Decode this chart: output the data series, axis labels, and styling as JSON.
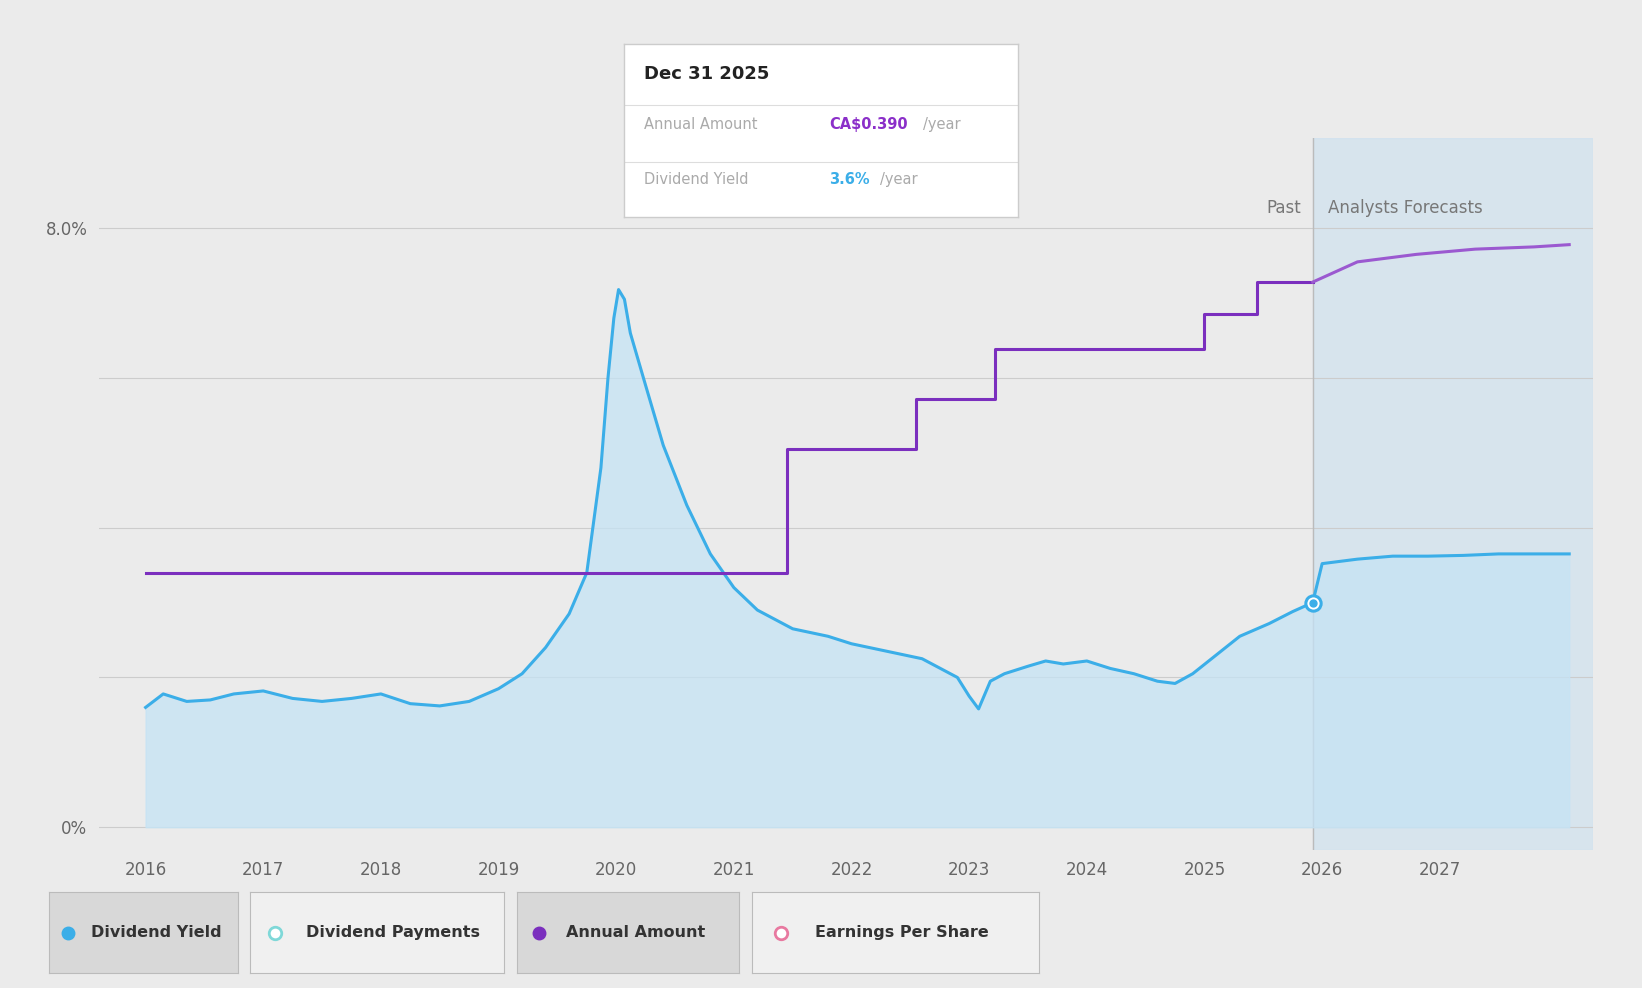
{
  "bg_color": "#ebebeb",
  "plot_bg_color": "#ebebeb",
  "x_min": 2015.6,
  "x_max": 2028.3,
  "y_min": -0.3,
  "y_max": 9.2,
  "forecast_start": 2025.92,
  "dividend_yield_color": "#3baee8",
  "dividend_yield_fill_color": "#c5e3f5",
  "annual_amount_color": "#7b2fbe",
  "annual_amount_forecast_color": "#9b59d0",
  "dot_color": "#3baee8",
  "dividend_yield_data": [
    [
      2016.0,
      1.6
    ],
    [
      2016.15,
      1.78
    ],
    [
      2016.35,
      1.68
    ],
    [
      2016.55,
      1.7
    ],
    [
      2016.75,
      1.78
    ],
    [
      2017.0,
      1.82
    ],
    [
      2017.25,
      1.72
    ],
    [
      2017.5,
      1.68
    ],
    [
      2017.75,
      1.72
    ],
    [
      2018.0,
      1.78
    ],
    [
      2018.25,
      1.65
    ],
    [
      2018.5,
      1.62
    ],
    [
      2018.75,
      1.68
    ],
    [
      2019.0,
      1.85
    ],
    [
      2019.2,
      2.05
    ],
    [
      2019.4,
      2.4
    ],
    [
      2019.6,
      2.85
    ],
    [
      2019.75,
      3.4
    ],
    [
      2019.87,
      4.8
    ],
    [
      2019.93,
      6.0
    ],
    [
      2019.98,
      6.8
    ],
    [
      2020.02,
      7.18
    ],
    [
      2020.07,
      7.05
    ],
    [
      2020.12,
      6.6
    ],
    [
      2020.25,
      5.9
    ],
    [
      2020.4,
      5.1
    ],
    [
      2020.6,
      4.3
    ],
    [
      2020.8,
      3.65
    ],
    [
      2021.0,
      3.2
    ],
    [
      2021.2,
      2.9
    ],
    [
      2021.5,
      2.65
    ],
    [
      2021.8,
      2.55
    ],
    [
      2022.0,
      2.45
    ],
    [
      2022.3,
      2.35
    ],
    [
      2022.6,
      2.25
    ],
    [
      2022.9,
      2.0
    ],
    [
      2023.0,
      1.75
    ],
    [
      2023.08,
      1.58
    ],
    [
      2023.18,
      1.95
    ],
    [
      2023.3,
      2.05
    ],
    [
      2023.5,
      2.15
    ],
    [
      2023.65,
      2.22
    ],
    [
      2023.8,
      2.18
    ],
    [
      2024.0,
      2.22
    ],
    [
      2024.2,
      2.12
    ],
    [
      2024.4,
      2.05
    ],
    [
      2024.6,
      1.95
    ],
    [
      2024.75,
      1.92
    ],
    [
      2024.9,
      2.05
    ],
    [
      2025.1,
      2.3
    ],
    [
      2025.3,
      2.55
    ],
    [
      2025.55,
      2.72
    ],
    [
      2025.75,
      2.88
    ],
    [
      2025.92,
      3.0
    ],
    [
      2026.0,
      3.52
    ],
    [
      2026.3,
      3.58
    ],
    [
      2026.6,
      3.62
    ],
    [
      2026.9,
      3.62
    ],
    [
      2027.2,
      3.63
    ],
    [
      2027.5,
      3.65
    ],
    [
      2027.8,
      3.65
    ],
    [
      2028.1,
      3.65
    ]
  ],
  "annual_amount_data": [
    [
      2016.0,
      3.4
    ],
    [
      2021.45,
      3.4
    ],
    [
      2021.45,
      5.05
    ],
    [
      2022.55,
      5.05
    ],
    [
      2022.55,
      5.72
    ],
    [
      2023.22,
      5.72
    ],
    [
      2023.22,
      6.38
    ],
    [
      2025.0,
      6.38
    ],
    [
      2025.0,
      6.85
    ],
    [
      2025.45,
      6.85
    ],
    [
      2025.45,
      7.28
    ],
    [
      2025.92,
      7.28
    ]
  ],
  "annual_amount_forecast_data": [
    [
      2025.92,
      7.28
    ],
    [
      2026.3,
      7.55
    ],
    [
      2026.8,
      7.65
    ],
    [
      2027.3,
      7.72
    ],
    [
      2027.8,
      7.75
    ],
    [
      2028.1,
      7.78
    ]
  ],
  "legend_items": [
    {
      "label": "Dividend Yield",
      "color": "#3baee8",
      "type": "filled_circle",
      "bg": "#d8d8d8"
    },
    {
      "label": "Dividend Payments",
      "color": "#7fd8d8",
      "type": "open_circle",
      "bg": "#f5f5f5"
    },
    {
      "label": "Annual Amount",
      "color": "#7b2fbe",
      "type": "filled_circle",
      "bg": "#d8d8d8"
    },
    {
      "label": "Earnings Per Share",
      "color": "#e879a0",
      "type": "open_circle",
      "bg": "#f5f5f5"
    }
  ]
}
